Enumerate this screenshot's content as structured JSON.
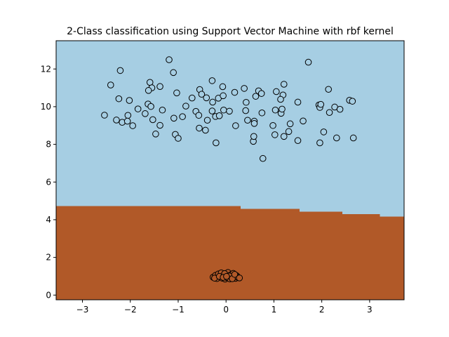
{
  "chart_data": {
    "type": "scatter",
    "title": "2-Class classification using Support Vector Machine with rbf kernel",
    "xlabel": "",
    "ylabel": "",
    "xlim": [
      -3.55,
      3.72
    ],
    "ylim": [
      -0.25,
      13.5
    ],
    "xticks": [
      -3,
      -2,
      -1,
      0,
      1,
      2,
      3
    ],
    "xtick_labels": [
      "−3",
      "−2",
      "−1",
      "0",
      "1",
      "2",
      "3"
    ],
    "yticks": [
      0,
      2,
      4,
      6,
      8,
      10,
      12
    ],
    "ytick_labels": [
      "0",
      "2",
      "4",
      "6",
      "8",
      "10",
      "12"
    ],
    "grid": false,
    "legend": "none",
    "colors": {
      "upper_region": "#a6cee3",
      "lower_region": "#b15928",
      "upper_points": "#a6cee3",
      "lower_points": "#b15928",
      "marker_edge": "#000000"
    },
    "decision_boundary": [
      {
        "x_start": -3.55,
        "x_end": 0.3,
        "y": 4.72
      },
      {
        "x_start": 0.3,
        "x_end": 1.53,
        "y": 4.58
      },
      {
        "x_start": 1.53,
        "x_end": 2.42,
        "y": 4.42
      },
      {
        "x_start": 2.42,
        "x_end": 3.21,
        "y": 4.3
      },
      {
        "x_start": 3.21,
        "x_end": 3.72,
        "y": 4.16
      }
    ],
    "series": [
      {
        "class": 1,
        "points": [
          [
            -1.19,
            12.49
          ],
          [
            -2.21,
            11.92
          ],
          [
            1.72,
            12.36
          ],
          [
            -2.41,
            11.15
          ],
          [
            -1.1,
            11.81
          ],
          [
            -0.29,
            11.38
          ],
          [
            -1.59,
            11.29
          ],
          [
            -1.38,
            11.07
          ],
          [
            -1.55,
            11.0
          ],
          [
            -0.55,
            10.91
          ],
          [
            -0.07,
            11.06
          ],
          [
            0.38,
            10.97
          ],
          [
            0.68,
            10.84
          ],
          [
            1.21,
            11.19
          ],
          [
            2.14,
            10.92
          ],
          [
            -2.24,
            10.42
          ],
          [
            -2.02,
            10.33
          ],
          [
            -1.62,
            10.86
          ],
          [
            -1.03,
            10.73
          ],
          [
            -0.51,
            10.66
          ],
          [
            -0.41,
            10.47
          ],
          [
            -0.16,
            10.45
          ],
          [
            -0.06,
            10.58
          ],
          [
            0.18,
            10.76
          ],
          [
            0.62,
            10.55
          ],
          [
            0.74,
            10.7
          ],
          [
            1.05,
            10.8
          ],
          [
            1.19,
            10.62
          ],
          [
            1.14,
            10.39
          ],
          [
            1.5,
            10.24
          ],
          [
            -0.71,
            10.46
          ],
          [
            -0.28,
            10.24
          ],
          [
            -2.54,
            9.55
          ],
          [
            -2.05,
            9.54
          ],
          [
            -1.84,
            9.88
          ],
          [
            -1.63,
            10.14
          ],
          [
            -1.57,
            10.01
          ],
          [
            -1.33,
            9.82
          ],
          [
            -0.91,
            9.47
          ],
          [
            -0.84,
            10.03
          ],
          [
            -0.63,
            9.75
          ],
          [
            -0.57,
            9.54
          ],
          [
            -0.39,
            9.28
          ],
          [
            -0.29,
            9.77
          ],
          [
            -0.22,
            9.48
          ],
          [
            -0.14,
            9.52
          ],
          [
            -0.05,
            9.82
          ],
          [
            0.07,
            9.76
          ],
          [
            0.42,
            10.23
          ],
          [
            0.41,
            9.79
          ],
          [
            0.45,
            9.28
          ],
          [
            0.59,
            9.23
          ],
          [
            0.59,
            9.11
          ],
          [
            0.75,
            9.67
          ],
          [
            1.03,
            9.82
          ],
          [
            1.15,
            9.65
          ],
          [
            1.17,
            9.87
          ],
          [
            1.94,
            10.09
          ],
          [
            1.96,
            9.96
          ],
          [
            1.98,
            10.12
          ],
          [
            2.27,
            9.98
          ],
          [
            2.38,
            9.86
          ],
          [
            2.16,
            9.69
          ],
          [
            2.58,
            10.34
          ],
          [
            2.64,
            10.29
          ],
          [
            -2.29,
            9.29
          ],
          [
            -2.17,
            9.17
          ],
          [
            -2.06,
            9.23
          ],
          [
            -1.95,
            8.99
          ],
          [
            -1.69,
            9.63
          ],
          [
            -1.53,
            9.31
          ],
          [
            -1.47,
            8.55
          ],
          [
            -1.38,
            9.01
          ],
          [
            -1.09,
            9.39
          ],
          [
            -1.06,
            8.53
          ],
          [
            -1.0,
            8.32
          ],
          [
            -0.56,
            8.86
          ],
          [
            -0.43,
            8.75
          ],
          [
            -0.21,
            8.08
          ],
          [
            0.2,
            8.99
          ],
          [
            0.57,
            8.16
          ],
          [
            0.58,
            8.42
          ],
          [
            0.98,
            9.0
          ],
          [
            1.02,
            8.51
          ],
          [
            1.21,
            8.42
          ],
          [
            1.31,
            8.68
          ],
          [
            1.34,
            9.09
          ],
          [
            1.5,
            8.2
          ],
          [
            1.61,
            9.24
          ],
          [
            1.96,
            8.08
          ],
          [
            2.04,
            8.66
          ],
          [
            2.31,
            8.34
          ],
          [
            2.66,
            8.34
          ],
          [
            0.77,
            7.25
          ]
        ]
      },
      {
        "class": 0,
        "points": [
          [
            -0.27,
            0.95
          ],
          [
            -0.22,
            1.05
          ],
          [
            -0.19,
            0.88
          ],
          [
            -0.16,
            1.12
          ],
          [
            -0.12,
            0.96
          ],
          [
            -0.1,
            1.18
          ],
          [
            -0.08,
            0.9
          ],
          [
            -0.05,
            1.02
          ],
          [
            -0.02,
            0.85
          ],
          [
            0.0,
            1.1
          ],
          [
            0.02,
            0.93
          ],
          [
            0.04,
            1.2
          ],
          [
            0.06,
            0.98
          ],
          [
            0.08,
            0.86
          ],
          [
            0.1,
            1.08
          ],
          [
            0.12,
            0.92
          ],
          [
            0.15,
            1.15
          ],
          [
            0.17,
            0.97
          ],
          [
            0.2,
            0.89
          ],
          [
            0.22,
            1.03
          ],
          [
            0.25,
            0.94
          ],
          [
            0.28,
            0.91
          ],
          [
            -0.24,
            0.9
          ],
          [
            -0.14,
            0.99
          ],
          [
            -0.03,
            1.14
          ],
          [
            0.07,
            1.01
          ],
          [
            0.13,
            0.87
          ],
          [
            0.18,
            1.1
          ],
          [
            -0.06,
            0.94
          ],
          [
            0.01,
            0.99
          ]
        ]
      }
    ]
  }
}
